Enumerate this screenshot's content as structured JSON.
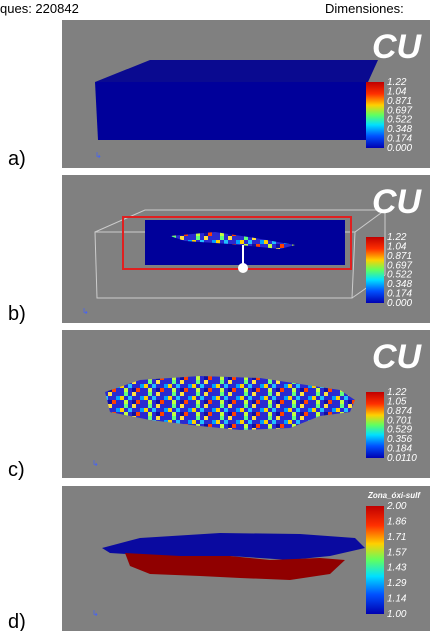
{
  "header": {
    "left": "ques: 220842",
    "right": "Dimensiones:"
  },
  "panels": [
    {
      "label": "a)",
      "legend_title": "CU",
      "legend_ticks": [
        "1.22",
        "1.04",
        "0.871",
        "0.697",
        "0.522",
        "0.348",
        "0.174",
        "0.000"
      ]
    },
    {
      "label": "b)",
      "legend_title": "CU",
      "legend_ticks": [
        "1.22",
        "1.04",
        "0.871",
        "0.697",
        "0.522",
        "0.348",
        "0.174",
        "0.000"
      ]
    },
    {
      "label": "c)",
      "legend_title": "CU",
      "legend_ticks": [
        "1.22",
        "1.05",
        "0.874",
        "0.701",
        "0.529",
        "0.356",
        "0.184",
        "0.0110"
      ]
    },
    {
      "label": "d)",
      "legend_title": "Zona_óxi-sulf",
      "legend_ticks": [
        "2.00",
        "1.86",
        "1.71",
        "1.57",
        "1.43",
        "1.29",
        "1.14",
        "1.00"
      ]
    }
  ]
}
